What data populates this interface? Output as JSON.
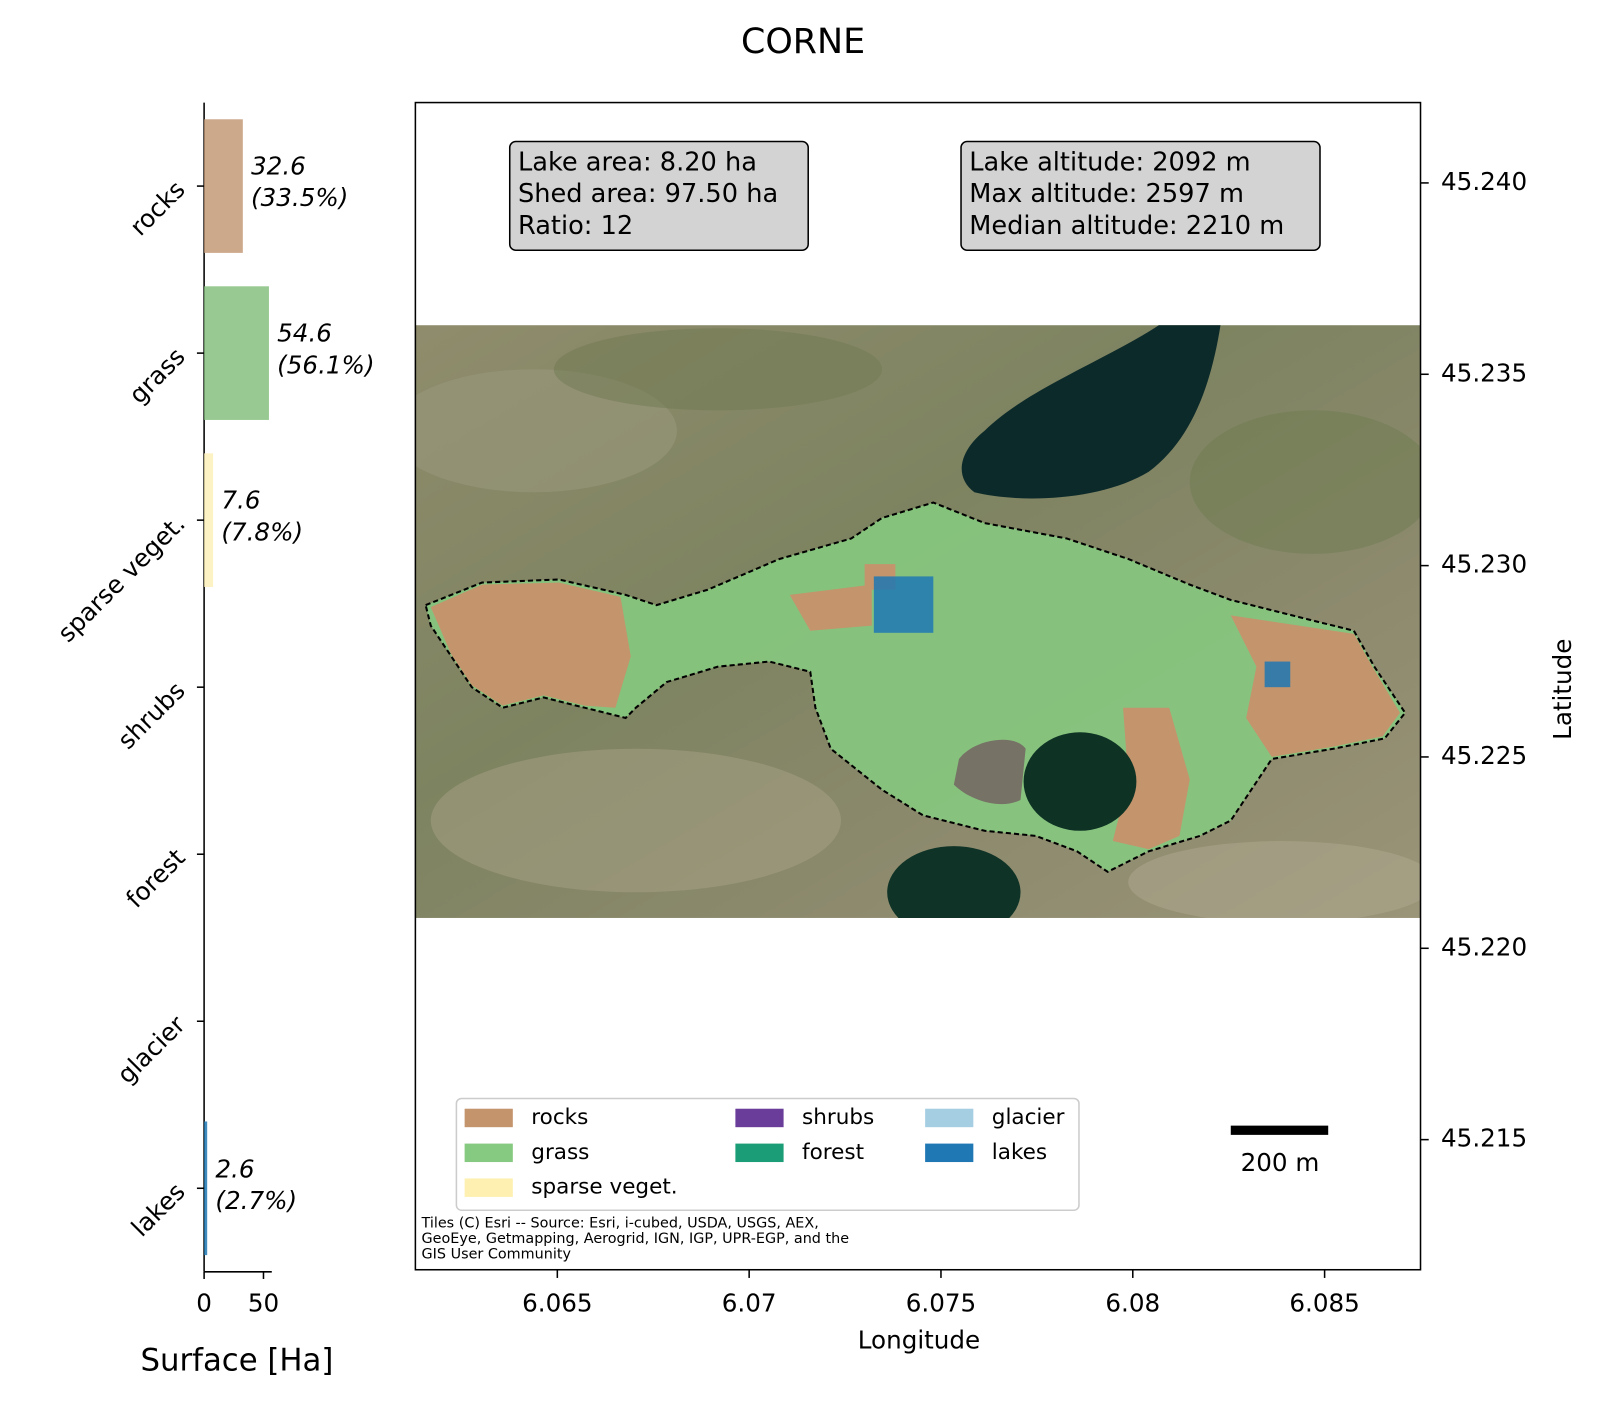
{
  "chart_data": [
    {
      "type": "hbar",
      "categories": [
        "rocks",
        "grass",
        "sparse veget.",
        "shrubs",
        "forest",
        "glacier",
        "lakes"
      ],
      "values": [
        32.6,
        54.6,
        7.6,
        0,
        0,
        0,
        2.6
      ],
      "value_labels": [
        "32.6\n(33.5%)",
        "54.6\n(56.1%)",
        "7.6\n(7.8%)",
        null,
        null,
        null,
        "2.6\n(2.7%)"
      ],
      "colors": [
        "#c49a78",
        "#86bf80",
        "#fdf0b8",
        "#6a3d9a",
        "#1b9e77",
        "#a6cee3",
        "#1f78b4"
      ],
      "xlabel": "Surface [Ha]",
      "xlim": [
        0,
        57
      ],
      "xticks": [
        0,
        50
      ]
    },
    {
      "type": "map",
      "title": "CORNE",
      "xlabel": "Longitude",
      "ylabel": "Latitude",
      "xlim": [
        6.0613,
        6.0875
      ],
      "xticks": [
        6.065,
        6.07,
        6.075,
        6.08,
        6.085
      ],
      "ylim": [
        45.2116,
        45.2421
      ],
      "yticks": [
        {
          "value": 45.24,
          "label": "45.240"
        },
        45.235,
        {
          "value": 45.23,
          "label": "45.230"
        },
        45.225,
        {
          "value": 45.22,
          "label": "45.220"
        },
        45.215
      ],
      "annotations": [
        "Lake area: 8.20 ha\nShed area: 97.50 ha\nRatio: 12",
        "Lake altitude: 2092 m\nMax altitude: 2597 m\nMedian altitude: 2210 m"
      ],
      "legend": [
        {
          "name": "rocks",
          "color": "#c4946c"
        },
        {
          "name": "grass",
          "color": "#86c980"
        },
        {
          "name": "sparse veget.",
          "color": "#fdf0b0"
        },
        {
          "name": "shrubs",
          "color": "#6a3d9a"
        },
        {
          "name": "forest",
          "color": "#1b9e77"
        },
        {
          "name": "glacier",
          "color": "#a6cee3"
        },
        {
          "name": "lakes",
          "color": "#1f78b4"
        }
      ],
      "scale_bar": "200 m",
      "attribution": "Tiles (C) Esri -- Source: Esri, i-cubed, USDA, USGS, AEX,\nGeoEye, Getmapping, Aerogrid, IGN, IGP, UPR-EGP, and the\nGIS User Community"
    }
  ]
}
